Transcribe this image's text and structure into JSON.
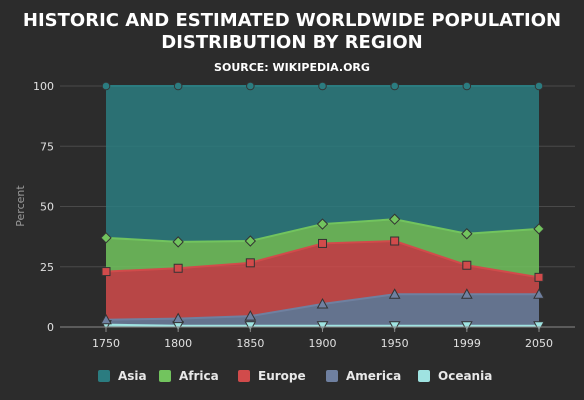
{
  "chart_data": {
    "type": "area",
    "stacking": "percent",
    "title_lines": [
      "HISTORIC AND ESTIMATED WORLDWIDE POPULATION",
      "DISTRIBUTION BY REGION"
    ],
    "subtitle": "SOURCE: WIKIPEDIA.ORG",
    "xlabel": "",
    "ylabel": "Percent",
    "categories": [
      "1750",
      "1800",
      "1850",
      "1900",
      "1950",
      "1999",
      "2050"
    ],
    "ylim": [
      0,
      100
    ],
    "yticks": [
      0,
      25,
      50,
      75,
      100
    ],
    "grid": true,
    "legend_position": "bottom",
    "series": [
      {
        "name": "Asia",
        "color": "#2b7c80",
        "marker": "circle",
        "values": [
          63,
          65,
          64,
          57,
          55,
          61,
          59
        ]
      },
      {
        "name": "Africa",
        "color": "#72c45e",
        "marker": "diamond",
        "values": [
          14,
          11,
          9,
          8,
          9,
          13,
          20
        ]
      },
      {
        "name": "Europe",
        "color": "#d14b4b",
        "marker": "square",
        "values": [
          20,
          21,
          22,
          25,
          22,
          12,
          7
        ]
      },
      {
        "name": "America",
        "color": "#6f80a0",
        "marker": "triangle",
        "values": [
          2,
          3,
          4,
          9,
          13,
          13,
          13
        ]
      },
      {
        "name": "Oceania",
        "color": "#9fe3e1",
        "marker": "triangle-down",
        "values": [
          1,
          0.5,
          0.5,
          0.5,
          0.5,
          0.5,
          0.5
        ]
      }
    ]
  }
}
